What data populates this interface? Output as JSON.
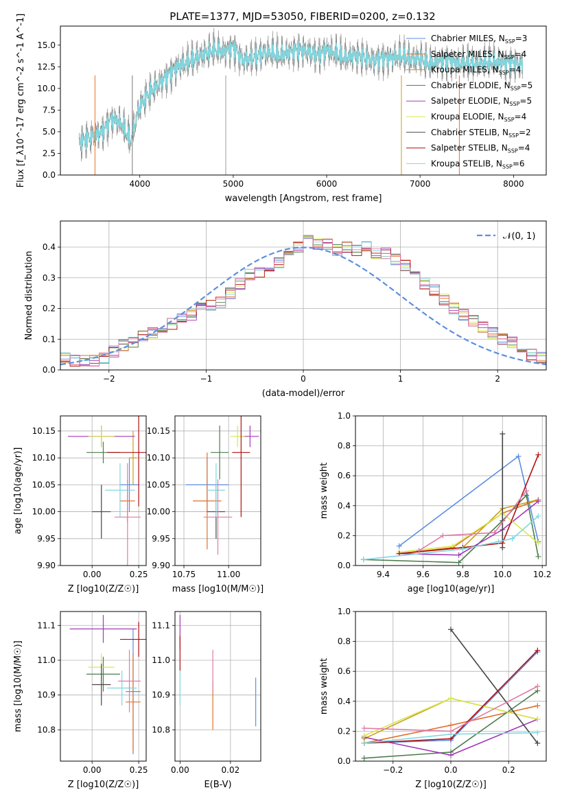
{
  "title": "PLATE=1377, MJD=53050, FIBERID=0200, z=0.132",
  "colors": {
    "Chabrier MILES": "#5b8ee0",
    "Salpeter MILES": "#e0702a",
    "Kroupa MILES": "#c79f18",
    "Chabrier ELODIE": "#4c7c4c",
    "Salpeter ELODIE": "#a23ab5",
    "Kroupa ELODIE": "#d8e84a",
    "Chabrier STELIB": "#444444",
    "Salpeter STELIB": "#b01010",
    "Kroupa STELIB": "#7fd6e0",
    "pink": "#e07aa8",
    "olive": "#8a8a3a",
    "normal": "#5b8ee0"
  },
  "chart_data": [
    {
      "type": "line",
      "xlabel": "wavelength [Angstrom, rest frame]",
      "ylabel": "Flux [f_λ10^-17 erg cm^-2 s^-1 A^-1]",
      "xlim": [
        3150,
        8350
      ],
      "ylim": [
        0,
        17.2
      ],
      "xticks": [
        "4000",
        "5000",
        "6000",
        "7000",
        "8000"
      ],
      "yticks": [
        "0.0",
        "2.5",
        "5.0",
        "7.5",
        "10.0",
        "12.5",
        "15.0"
      ],
      "legend": [
        {
          "name": "Chabrier MILES",
          "nssp": "3"
        },
        {
          "name": "Salpeter MILES",
          "nssp": "4"
        },
        {
          "name": "Kroupa MILES",
          "nssp": "4"
        },
        {
          "name": "Chabrier ELODIE",
          "nssp": "5"
        },
        {
          "name": "Salpeter ELODIE",
          "nssp": "5"
        },
        {
          "name": "Kroupa ELODIE",
          "nssp": "4"
        },
        {
          "name": "Chabrier STELIB",
          "nssp": "2"
        },
        {
          "name": "Salpeter STELIB",
          "nssp": "4"
        },
        {
          "name": "Kroupa STELIB",
          "nssp": "6"
        }
      ],
      "spectrum": {
        "x": [
          3350,
          3500,
          3600,
          3700,
          3800,
          3900,
          4000,
          4100,
          4200,
          4300,
          4400,
          4500,
          4600,
          4700,
          4800,
          4900,
          5000,
          5100,
          5200,
          5300,
          5400,
          5500,
          5600,
          5700,
          5800,
          5900,
          6000,
          6100,
          6200,
          6300,
          6400,
          6500,
          6600,
          6700,
          6800,
          6900,
          7000,
          7100,
          7200,
          7300,
          7400,
          7500,
          7600,
          7700,
          7800,
          7900,
          8000,
          8100
        ],
        "y": [
          3.8,
          4.5,
          5.0,
          6.5,
          6.0,
          4.0,
          8.0,
          9.5,
          10.5,
          11.5,
          12.5,
          13.0,
          13.5,
          14.0,
          14.5,
          14.2,
          14.8,
          13.2,
          13.5,
          14.0,
          14.2,
          13.8,
          14.2,
          14.5,
          14.3,
          13.8,
          14.5,
          14.0,
          13.5,
          13.8,
          13.6,
          13.2,
          13.5,
          13.5,
          13.8,
          13.3,
          13.5,
          12.8,
          13.2,
          13.3,
          12.9,
          13.0,
          12.8,
          13.0,
          13.1,
          12.9,
          13.0,
          12.6
        ]
      }
    },
    {
      "type": "histogram",
      "xlabel": "(data-model)/error",
      "ylabel": "Normed distribution",
      "xlim": [
        -2.5,
        2.5
      ],
      "ylim": [
        0,
        0.485
      ],
      "xticks": [
        "−2",
        "−1",
        "0",
        "1",
        "2"
      ],
      "yticks": [
        "0.0",
        "0.1",
        "0.2",
        "0.3",
        "0.4"
      ],
      "legend": "𝒩(0, 1)",
      "bin_width": 0.1,
      "bins_start": -2.5,
      "values": [
        0.04,
        0.03,
        0.03,
        0.03,
        0.04,
        0.06,
        0.08,
        0.09,
        0.11,
        0.12,
        0.14,
        0.15,
        0.17,
        0.18,
        0.2,
        0.21,
        0.22,
        0.25,
        0.28,
        0.31,
        0.32,
        0.34,
        0.35,
        0.38,
        0.4,
        0.42,
        0.41,
        0.41,
        0.39,
        0.4,
        0.39,
        0.4,
        0.38,
        0.38,
        0.36,
        0.34,
        0.31,
        0.28,
        0.26,
        0.23,
        0.2,
        0.18,
        0.16,
        0.14,
        0.12,
        0.1,
        0.09,
        0.07,
        0.05,
        0.04
      ]
    },
    {
      "type": "scatter",
      "xlabel": "Z [log10(Z/Z☉)]",
      "ylabel": "age  [log10(age/yr)]",
      "xlim": [
        -0.17,
        0.29
      ],
      "ylim": [
        9.9,
        10.178
      ],
      "xticks": [
        "0.00",
        "0.25"
      ],
      "yticks": [
        "9.90",
        "9.95",
        "10.00",
        "10.05",
        "10.10",
        "10.15"
      ],
      "points": [
        {
          "c": "Chabrier MILES",
          "x": 0.2,
          "y": 10.05,
          "xe": 0.05,
          "ye": 0.05
        },
        {
          "c": "Salpeter MILES",
          "x": 0.19,
          "y": 10.02,
          "xe": 0.04,
          "ye": 0.04
        },
        {
          "c": "Kroupa MILES",
          "x": 0.22,
          "y": 10.1,
          "xe": 0.02,
          "ye": 0.05
        },
        {
          "c": "Chabrier ELODIE",
          "x": 0.06,
          "y": 10.11,
          "xe": 0.09,
          "ye": 0.02
        },
        {
          "c": "Salpeter ELODIE",
          "x": 0.05,
          "y": 10.14,
          "xe": 0.18,
          "ye": 0.02
        },
        {
          "c": "Kroupa ELODIE",
          "x": 0.05,
          "y": 10.14,
          "xe": 0.07,
          "ye": 0.02
        },
        {
          "c": "Chabrier STELIB",
          "x": 0.05,
          "y": 10.0,
          "xe": 0.05,
          "ye": 0.05
        },
        {
          "c": "Salpeter STELIB",
          "x": 0.25,
          "y": 10.11,
          "xe": 0.17,
          "ye": 0.1
        },
        {
          "c": "Kroupa STELIB",
          "x": 0.15,
          "y": 10.04,
          "xe": 0.08,
          "ye": 0.05
        },
        {
          "c": "pink",
          "x": 0.19,
          "y": 9.99,
          "xe": 0.07,
          "ye": 0.1
        }
      ]
    },
    {
      "type": "scatter",
      "xlabel": "mass [log10(M/M☉)]",
      "ylabel": "",
      "xlim": [
        10.7,
        11.18
      ],
      "ylim": [
        9.9,
        10.178
      ],
      "xticks": [
        "10.75",
        "11.00"
      ],
      "yticks": [
        "9.90",
        "9.95",
        "10.00",
        "10.05",
        "10.10",
        "10.15"
      ],
      "points": [
        {
          "c": "Chabrier MILES",
          "x": 10.88,
          "y": 10.05,
          "xe": 0.12,
          "ye": 0.05
        },
        {
          "c": "Salpeter MILES",
          "x": 10.88,
          "y": 10.02,
          "xe": 0.08,
          "ye": 0.09
        },
        {
          "c": "Chabrier ELODIE",
          "x": 10.95,
          "y": 10.11,
          "xe": 0.05,
          "ye": 0.05
        },
        {
          "c": "Salpeter ELODIE",
          "x": 11.12,
          "y": 10.14,
          "xe": 0.05,
          "ye": 0.02
        },
        {
          "c": "Kroupa ELODIE",
          "x": 11.05,
          "y": 10.14,
          "xe": 0.04,
          "ye": 0.02
        },
        {
          "c": "Chabrier STELIB",
          "x": 10.93,
          "y": 10.0,
          "xe": 0.05,
          "ye": 0.05
        },
        {
          "c": "Salpeter STELIB",
          "x": 11.07,
          "y": 10.11,
          "xe": 0.05,
          "ye": 0.12
        },
        {
          "c": "Kroupa STELIB",
          "x": 10.93,
          "y": 10.04,
          "xe": 0.05,
          "ye": 0.05
        },
        {
          "c": "pink",
          "x": 10.94,
          "y": 9.99,
          "xe": 0.08,
          "ye": 0.07
        }
      ]
    },
    {
      "type": "line",
      "xlabel": "age  [log10(age/yr)]",
      "ylabel": "mass weight",
      "xlim": [
        9.26,
        10.22
      ],
      "ylim": [
        0,
        1.0
      ],
      "xticks": [
        "9.4",
        "9.6",
        "9.8",
        "10.0",
        "10.2"
      ],
      "yticks": [
        "0.0",
        "0.2",
        "0.4",
        "0.6",
        "0.8",
        "1.0"
      ],
      "series": [
        {
          "c": "Chabrier MILES",
          "x": [
            9.48,
            10.08,
            10.18
          ],
          "y": [
            0.13,
            0.73,
            0.16
          ]
        },
        {
          "c": "Salpeter MILES",
          "x": [
            9.48,
            9.75,
            10.0,
            10.18
          ],
          "y": [
            0.08,
            0.12,
            0.35,
            0.44
          ]
        },
        {
          "c": "Kroupa MILES",
          "x": [
            9.48,
            9.8,
            10.0,
            10.18
          ],
          "y": [
            0.08,
            0.12,
            0.38,
            0.44
          ]
        },
        {
          "c": "Chabrier ELODIE",
          "x": [
            9.3,
            9.78,
            10.0,
            10.12,
            10.18
          ],
          "y": [
            0.04,
            0.02,
            0.3,
            0.47,
            0.06
          ]
        },
        {
          "c": "Salpeter ELODIE",
          "x": [
            9.48,
            9.78,
            10.0,
            10.18
          ],
          "y": [
            0.08,
            0.07,
            0.24,
            0.43
          ]
        },
        {
          "c": "Kroupa ELODIE",
          "x": [
            9.48,
            9.75,
            10.0,
            10.18
          ],
          "y": [
            0.09,
            0.13,
            0.35,
            0.15
          ]
        },
        {
          "c": "Chabrier STELIB",
          "x": [
            10.0,
            10.0
          ],
          "y": [
            0.12,
            0.88
          ]
        },
        {
          "c": "Salpeter STELIB",
          "x": [
            9.48,
            9.8,
            10.0,
            10.18
          ],
          "y": [
            0.08,
            0.12,
            0.15,
            0.74
          ]
        },
        {
          "c": "Kroupa STELIB",
          "x": [
            9.3,
            9.8,
            9.98,
            10.05,
            10.18
          ],
          "y": [
            0.04,
            0.11,
            0.16,
            0.18,
            0.33
          ]
        },
        {
          "c": "pink",
          "x": [
            9.58,
            9.7,
            9.96,
            10.12
          ],
          "y": [
            0.1,
            0.2,
            0.22,
            0.5
          ]
        }
      ]
    },
    {
      "type": "scatter",
      "xlabel": "Z [log10(Z/Z☉)]",
      "ylabel": "mass [log10(M/M☉)]",
      "xlim": [
        -0.17,
        0.29
      ],
      "ylim": [
        10.71,
        11.14
      ],
      "xticks": [
        "0.00",
        "0.25"
      ],
      "yticks": [
        "10.8",
        "10.9",
        "11.0",
        "11.1"
      ],
      "points": [
        {
          "c": "Chabrier MILES",
          "x": 0.22,
          "y": 10.91,
          "xe": 0.04,
          "ye": 0.18
        },
        {
          "c": "Salpeter MILES",
          "x": 0.22,
          "y": 10.88,
          "xe": 0.04,
          "ye": 0.14
        },
        {
          "c": "Chabrier ELODIE",
          "x": 0.06,
          "y": 10.96,
          "xe": 0.09,
          "ye": 0.05
        },
        {
          "c": "Salpeter ELODIE",
          "x": 0.06,
          "y": 11.09,
          "xe": 0.18,
          "ye": 0.04
        },
        {
          "c": "Kroupa ELODIE",
          "x": 0.05,
          "y": 10.98,
          "xe": 0.07,
          "ye": 0.04
        },
        {
          "c": "Chabrier STELIB",
          "x": 0.05,
          "y": 10.93,
          "xe": 0.05,
          "ye": 0.06
        },
        {
          "c": "Salpeter STELIB",
          "x": 0.25,
          "y": 11.06,
          "xe": 0.1,
          "ye": 0.05
        },
        {
          "c": "Kroupa STELIB",
          "x": 0.16,
          "y": 10.92,
          "xe": 0.08,
          "ye": 0.05
        },
        {
          "c": "pink",
          "x": 0.2,
          "y": 10.94,
          "xe": 0.06,
          "ye": 0.09
        }
      ]
    },
    {
      "type": "scatter",
      "xlabel": "E(B-V)",
      "ylabel": "",
      "xlim": [
        -0.002,
        0.032
      ],
      "ylim": [
        10.71,
        11.14
      ],
      "xticks": [
        "0.00",
        "0.02"
      ],
      "yticks": [
        "10.8",
        "10.9",
        "11.0",
        "11.1"
      ],
      "points": [
        {
          "c": "Chabrier MILES",
          "x": 0.03,
          "y": 10.88,
          "xe": 0,
          "ye": 0.07
        },
        {
          "c": "Salpeter MILES",
          "x": 0.013,
          "y": 10.87,
          "xe": 0,
          "ye": 0.07
        },
        {
          "c": "Salpeter ELODIE",
          "x": 0.0,
          "y": 11.08,
          "xe": 0,
          "ye": 0.05
        },
        {
          "c": "Salpeter STELIB",
          "x": 0.0,
          "y": 11.02,
          "xe": 0,
          "ye": 0.05
        },
        {
          "c": "Kroupa STELIB",
          "x": 0.0,
          "y": 10.92,
          "xe": 0,
          "ye": 0.05
        },
        {
          "c": "pink",
          "x": 0.013,
          "y": 10.97,
          "xe": 0,
          "ye": 0.06
        }
      ]
    },
    {
      "type": "line",
      "xlabel": "Z [log10(Z/Z☉)]",
      "ylabel": "mass weight",
      "xlim": [
        -0.33,
        0.33
      ],
      "ylim": [
        0,
        1.0
      ],
      "xticks": [
        "−0.2",
        "0.0",
        "0.2"
      ],
      "yticks": [
        "0.0",
        "0.2",
        "0.4",
        "0.6",
        "0.8",
        "1.0"
      ],
      "series": [
        {
          "c": "Chabrier MILES",
          "x": [
            -0.3,
            0.0,
            0.3
          ],
          "y": [
            0.12,
            0.14,
            0.73
          ]
        },
        {
          "c": "Salpeter MILES",
          "x": [
            -0.3,
            0.0,
            0.3
          ],
          "y": [
            0.12,
            0.24,
            0.37
          ]
        },
        {
          "c": "Kroupa MILES",
          "x": [
            -0.3,
            0.0,
            0.3
          ],
          "y": [
            0.15,
            0.42,
            0.28
          ]
        },
        {
          "c": "Chabrier ELODIE",
          "x": [
            -0.3,
            0.0,
            0.3
          ],
          "y": [
            0.02,
            0.06,
            0.47
          ]
        },
        {
          "c": "Salpeter ELODIE",
          "x": [
            -0.3,
            0.0,
            0.3
          ],
          "y": [
            0.16,
            0.04,
            0.28
          ]
        },
        {
          "c": "Kroupa ELODIE",
          "x": [
            -0.3,
            0.0,
            0.3
          ],
          "y": [
            0.17,
            0.42,
            0.28
          ]
        },
        {
          "c": "Chabrier STELIB",
          "x": [
            0.0,
            0.3
          ],
          "y": [
            0.88,
            0.12
          ]
        },
        {
          "c": "Salpeter STELIB",
          "x": [
            -0.3,
            0.0,
            0.3
          ],
          "y": [
            0.12,
            0.15,
            0.74
          ]
        },
        {
          "c": "Kroupa STELIB",
          "x": [
            -0.3,
            0.0,
            0.3
          ],
          "y": [
            0.12,
            0.18,
            0.19
          ]
        },
        {
          "c": "pink",
          "x": [
            -0.3,
            0.0,
            0.3
          ],
          "y": [
            0.22,
            0.2,
            0.5
          ]
        }
      ]
    }
  ]
}
